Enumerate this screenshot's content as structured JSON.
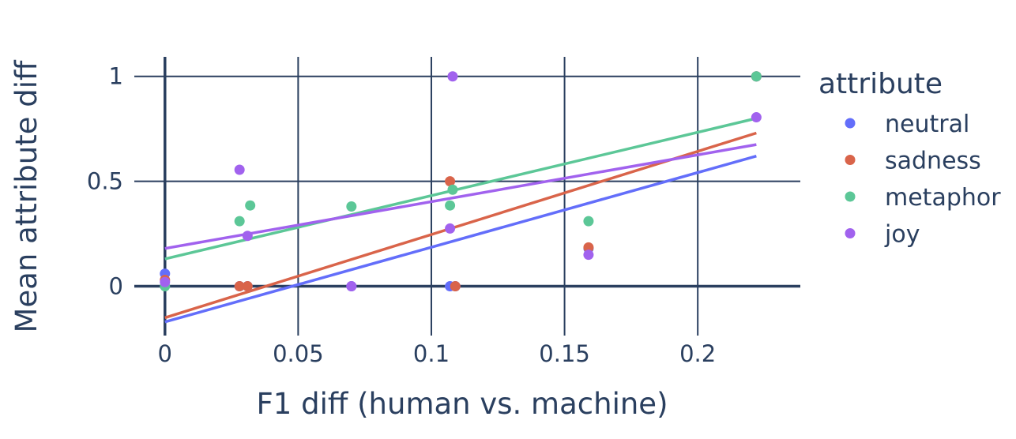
{
  "chart_data": {
    "type": "scatter",
    "xlabel": "F1 diff (human vs. machine)",
    "ylabel": "Mean attribute diff",
    "xlim": [
      -0.0115,
      0.2385
    ],
    "ylim": [
      -0.235,
      1.093
    ],
    "x_ticks": [
      0,
      0.05,
      0.1,
      0.15,
      0.2
    ],
    "x_tick_labels": [
      "0",
      "0.05",
      "0.1",
      "0.15",
      "0.2"
    ],
    "y_ticks": [
      0,
      0.5,
      1
    ],
    "y_tick_labels": [
      "0",
      "0.5",
      "1"
    ],
    "grid": true,
    "legend": {
      "title": "attribute",
      "position": "right"
    },
    "series": [
      {
        "name": "neutral",
        "color": "#636efa",
        "points": [
          [
            0,
            0.06
          ],
          [
            0.028,
            0.0
          ],
          [
            0.031,
            0.0
          ],
          [
            0.07,
            0.0
          ],
          [
            0.107,
            0.0
          ],
          [
            0.109,
            0.0
          ],
          [
            0.159,
            0.18
          ],
          [
            0.222,
            1.0
          ]
        ],
        "trend": [
          [
            0,
            -0.17
          ],
          [
            0.222,
            0.62
          ]
        ]
      },
      {
        "name": "sadness",
        "color": "#d9644a",
        "points": [
          [
            0,
            0.03
          ],
          [
            0.028,
            0.0
          ],
          [
            0.031,
            0.0
          ],
          [
            0.107,
            0.5
          ],
          [
            0.109,
            0.0
          ],
          [
            0.159,
            0.185
          ],
          [
            0.222,
            1.0
          ]
        ],
        "trend": [
          [
            0,
            -0.15
          ],
          [
            0.222,
            0.73
          ]
        ]
      },
      {
        "name": "metaphor",
        "color": "#5cc797",
        "points": [
          [
            0,
            0.0
          ],
          [
            0.028,
            0.31
          ],
          [
            0.032,
            0.385
          ],
          [
            0.07,
            0.38
          ],
          [
            0.107,
            0.385
          ],
          [
            0.108,
            0.46
          ],
          [
            0.159,
            0.31
          ],
          [
            0.222,
            1.0
          ]
        ],
        "trend": [
          [
            0,
            0.13
          ],
          [
            0.222,
            0.8
          ]
        ]
      },
      {
        "name": "joy",
        "color": "#a162ee",
        "points": [
          [
            0,
            0.02
          ],
          [
            0.028,
            0.555
          ],
          [
            0.031,
            0.24
          ],
          [
            0.07,
            0.0
          ],
          [
            0.107,
            0.275
          ],
          [
            0.108,
            1.0
          ],
          [
            0.159,
            0.15
          ],
          [
            0.222,
            0.805
          ]
        ],
        "trend": [
          [
            0,
            0.18
          ],
          [
            0.222,
            0.675
          ]
        ]
      }
    ]
  }
}
